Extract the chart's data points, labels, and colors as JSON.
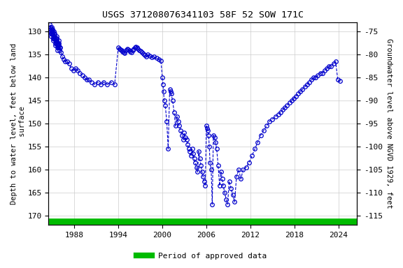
{
  "title": "USGS 371208076341103 58F 52 SOW 171C",
  "ylabel_left": "Depth to water level, feet below land\n surface",
  "ylabel_right": "Groundwater level above NGVD 1929, feet",
  "ylim_left": [
    128,
    172
  ],
  "ylim_right": [
    -73,
    -117
  ],
  "xlim": [
    1984.5,
    2026.5
  ],
  "yticks_left": [
    130,
    135,
    140,
    145,
    150,
    155,
    160,
    165,
    170
  ],
  "yticks_right": [
    -75,
    -80,
    -85,
    -90,
    -95,
    -100,
    -105,
    -110,
    -115
  ],
  "xticks": [
    1988,
    1994,
    2000,
    2006,
    2012,
    2018,
    2024
  ],
  "line_color": "#0000CC",
  "marker_color": "#0000CC",
  "bg_color": "#ffffff",
  "grid_color": "#cccccc",
  "green_bar_color": "#00BB00",
  "legend_label": "Period of approved data",
  "data_x": [
    1984.7,
    1984.73,
    1984.76,
    1984.79,
    1984.82,
    1984.85,
    1984.88,
    1984.91,
    1984.94,
    1984.97,
    1985.0,
    1985.03,
    1985.06,
    1985.09,
    1985.12,
    1985.15,
    1985.18,
    1985.21,
    1985.24,
    1985.27,
    1985.3,
    1985.33,
    1985.36,
    1985.39,
    1985.42,
    1985.45,
    1985.48,
    1985.51,
    1985.54,
    1985.57,
    1985.6,
    1985.63,
    1985.66,
    1985.69,
    1985.72,
    1985.75,
    1985.78,
    1985.81,
    1985.84,
    1985.87,
    1985.9,
    1985.93,
    1985.96,
    1985.99,
    1986.1,
    1986.2,
    1986.4,
    1986.6,
    1986.8,
    1987.0,
    1987.3,
    1987.6,
    1987.9,
    1988.2,
    1988.5,
    1988.8,
    1989.1,
    1989.4,
    1989.7,
    1990.0,
    1990.4,
    1990.8,
    1991.2,
    1991.6,
    1992.0,
    1992.5,
    1993.0,
    1993.5,
    1994.0,
    1994.15,
    1994.3,
    1994.45,
    1994.6,
    1994.75,
    1994.9,
    1995.05,
    1995.2,
    1995.35,
    1995.5,
    1995.65,
    1995.8,
    1995.95,
    1996.1,
    1996.25,
    1996.4,
    1996.55,
    1996.7,
    1996.85,
    1997.0,
    1997.2,
    1997.4,
    1997.6,
    1997.8,
    1998.0,
    1998.3,
    1998.6,
    1998.9,
    1999.2,
    1999.5,
    1999.8,
    2000.0,
    2000.08,
    2000.16,
    2000.25,
    2000.4,
    2000.6,
    2000.8,
    2001.0,
    2001.1,
    2001.2,
    2001.4,
    2001.6,
    2001.8,
    2002.0,
    2002.15,
    2002.3,
    2002.5,
    2002.7,
    2002.9,
    2003.0,
    2003.15,
    2003.3,
    2003.45,
    2003.6,
    2003.75,
    2003.9,
    2004.05,
    2004.2,
    2004.35,
    2004.5,
    2004.65,
    2004.8,
    2004.95,
    2005.1,
    2005.25,
    2005.4,
    2005.55,
    2005.7,
    2005.85,
    2006.0,
    2006.1,
    2006.2,
    2006.3,
    2006.4,
    2006.5,
    2006.65,
    2006.8,
    2006.95,
    2007.1,
    2007.25,
    2007.4,
    2007.6,
    2007.8,
    2008.0,
    2008.15,
    2008.3,
    2008.5,
    2008.7,
    2008.9,
    2009.1,
    2009.35,
    2009.6,
    2009.85,
    2010.1,
    2010.4,
    2010.7,
    2011.0,
    2011.4,
    2011.8,
    2012.2,
    2012.6,
    2013.0,
    2013.4,
    2013.8,
    2014.2,
    2014.6,
    2015.0,
    2015.4,
    2015.8,
    2016.1,
    2016.4,
    2016.7,
    2017.0,
    2017.3,
    2017.6,
    2017.9,
    2018.2,
    2018.5,
    2018.8,
    2019.1,
    2019.4,
    2019.7,
    2020.0,
    2020.3,
    2020.6,
    2020.9,
    2021.2,
    2021.5,
    2021.8,
    2022.1,
    2022.4,
    2022.7,
    2023.0,
    2023.3,
    2023.6,
    2023.9,
    2024.2
  ],
  "data_y": [
    128.5,
    129.0,
    129.5,
    130.0,
    130.5,
    131.0,
    130.5,
    130.0,
    129.5,
    129.0,
    129.5,
    130.0,
    130.5,
    131.0,
    131.5,
    132.0,
    131.5,
    131.0,
    130.5,
    130.0,
    130.5,
    131.0,
    131.5,
    132.0,
    132.5,
    133.0,
    132.5,
    132.0,
    131.5,
    131.0,
    131.5,
    132.0,
    132.5,
    133.0,
    133.5,
    134.0,
    133.5,
    133.0,
    132.5,
    132.0,
    132.5,
    133.0,
    133.5,
    134.0,
    133.5,
    134.5,
    135.5,
    136.0,
    136.5,
    136.5,
    137.0,
    138.0,
    138.5,
    138.0,
    138.5,
    139.0,
    139.5,
    140.0,
    140.5,
    140.5,
    141.0,
    141.5,
    141.0,
    141.5,
    141.0,
    141.5,
    141.0,
    141.5,
    133.5,
    133.7,
    133.9,
    134.1,
    134.3,
    134.5,
    134.7,
    134.0,
    133.7,
    133.9,
    134.1,
    134.3,
    134.5,
    134.0,
    133.7,
    133.5,
    133.3,
    133.5,
    133.8,
    134.0,
    134.2,
    134.5,
    134.8,
    135.2,
    135.5,
    135.0,
    135.3,
    135.6,
    135.5,
    135.8,
    136.0,
    136.3,
    140.0,
    141.5,
    143.0,
    145.0,
    146.0,
    149.5,
    155.5,
    142.5,
    143.0,
    143.5,
    145.0,
    147.5,
    150.5,
    148.5,
    149.5,
    150.5,
    151.5,
    152.5,
    153.5,
    152.0,
    153.0,
    153.5,
    154.5,
    155.5,
    156.0,
    157.0,
    155.5,
    156.5,
    157.5,
    158.5,
    159.5,
    160.5,
    156.0,
    157.5,
    159.0,
    160.5,
    161.5,
    162.5,
    163.5,
    150.5,
    151.0,
    151.5,
    152.5,
    155.0,
    158.5,
    160.0,
    167.5,
    152.5,
    153.0,
    154.0,
    155.5,
    159.0,
    163.5,
    160.5,
    162.0,
    163.5,
    165.0,
    166.5,
    167.5,
    162.5,
    164.0,
    165.5,
    167.0,
    161.5,
    160.0,
    162.0,
    160.0,
    159.5,
    158.5,
    157.0,
    155.5,
    154.0,
    152.5,
    151.5,
    150.5,
    149.5,
    149.0,
    148.5,
    148.0,
    147.5,
    147.0,
    146.5,
    146.0,
    145.5,
    145.0,
    144.5,
    144.0,
    143.5,
    143.0,
    142.5,
    142.0,
    141.5,
    141.0,
    140.5,
    140.0,
    140.0,
    139.5,
    139.0,
    139.0,
    138.5,
    138.0,
    137.5,
    137.5,
    137.0,
    136.5,
    140.5,
    140.8
  ]
}
